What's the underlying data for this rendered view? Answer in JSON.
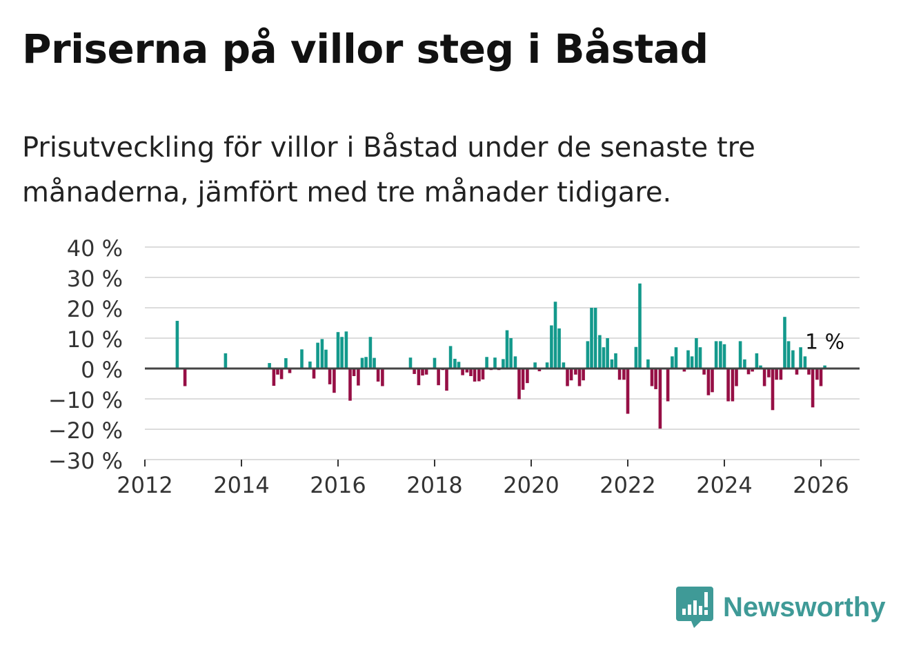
{
  "header": {
    "title": "Priserna på villor steg i Båstad",
    "subtitle": "Prisutveckling för villor i Båstad under de senaste tre månaderna, jämfört med tre månader tidigare."
  },
  "brand": {
    "name": "Newsworthy",
    "icon": "newsworthy-logo-icon"
  },
  "colors": {
    "positive": "#13998c",
    "negative": "#960f45",
    "grid": "#dcdcdc",
    "zero": "#444444"
  },
  "chart_data": {
    "type": "bar",
    "title": "Priserna på villor steg i Båstad",
    "xlabel": "",
    "ylabel": "",
    "xlim": [
      2012,
      2026.8
    ],
    "ylim": [
      -30,
      40
    ],
    "yticks": [
      -30,
      -20,
      -10,
      0,
      10,
      20,
      30,
      40
    ],
    "ytick_labels": [
      "−30 %",
      "−20 %",
      "−10 %",
      "0 %",
      "10 %",
      "20 %",
      "30 %",
      "40 %"
    ],
    "xticks": [
      2012,
      2014,
      2016,
      2018,
      2020,
      2022,
      2024,
      2026
    ],
    "xtick_labels": [
      "2012",
      "2014",
      "2016",
      "2018",
      "2020",
      "2022",
      "2024",
      "2026"
    ],
    "annotation": {
      "text": "1 %",
      "x": 2026.08,
      "y": 1
    },
    "points": [
      [
        2012.67,
        15.7
      ],
      [
        2012.83,
        -5.8
      ],
      [
        2013.67,
        5.0
      ],
      [
        2014.58,
        1.8
      ],
      [
        2014.67,
        -5.7
      ],
      [
        2014.75,
        -2.0
      ],
      [
        2014.83,
        -3.5
      ],
      [
        2014.92,
        3.4
      ],
      [
        2015.0,
        -1.5
      ],
      [
        2015.25,
        6.3
      ],
      [
        2015.42,
        2.3
      ],
      [
        2015.5,
        -3.3
      ],
      [
        2015.58,
        8.5
      ],
      [
        2015.67,
        9.7
      ],
      [
        2015.75,
        6.2
      ],
      [
        2015.83,
        -5.2
      ],
      [
        2015.92,
        -8.0
      ],
      [
        2016.0,
        12.0
      ],
      [
        2016.08,
        10.4
      ],
      [
        2016.17,
        12.2
      ],
      [
        2016.25,
        -10.6
      ],
      [
        2016.33,
        -2.5
      ],
      [
        2016.42,
        -5.6
      ],
      [
        2016.5,
        3.5
      ],
      [
        2016.58,
        3.8
      ],
      [
        2016.67,
        10.4
      ],
      [
        2016.75,
        3.5
      ],
      [
        2016.83,
        -4.3
      ],
      [
        2016.92,
        -5.8
      ],
      [
        2017.5,
        3.6
      ],
      [
        2017.58,
        -1.8
      ],
      [
        2017.67,
        -5.5
      ],
      [
        2017.75,
        -2.3
      ],
      [
        2017.83,
        -2.0
      ],
      [
        2018.0,
        3.5
      ],
      [
        2018.08,
        -5.5
      ],
      [
        2018.17,
        -0.5
      ],
      [
        2018.25,
        -7.3
      ],
      [
        2018.33,
        7.4
      ],
      [
        2018.42,
        3.2
      ],
      [
        2018.5,
        2.2
      ],
      [
        2018.58,
        -2.2
      ],
      [
        2018.67,
        -1.3
      ],
      [
        2018.75,
        -2.5
      ],
      [
        2018.83,
        -4.3
      ],
      [
        2018.92,
        -4.2
      ],
      [
        2019.0,
        -3.6
      ],
      [
        2019.08,
        3.8
      ],
      [
        2019.17,
        -0.5
      ],
      [
        2019.25,
        3.6
      ],
      [
        2019.33,
        -0.5
      ],
      [
        2019.42,
        3.1
      ],
      [
        2019.5,
        12.6
      ],
      [
        2019.58,
        10.0
      ],
      [
        2019.67,
        4.0
      ],
      [
        2019.75,
        -10.1
      ],
      [
        2019.83,
        -7.0
      ],
      [
        2019.92,
        -4.8
      ],
      [
        2020.08,
        2.0
      ],
      [
        2020.17,
        -0.9
      ],
      [
        2020.33,
        2.0
      ],
      [
        2020.42,
        14.2
      ],
      [
        2020.5,
        22.0
      ],
      [
        2020.58,
        13.2
      ],
      [
        2020.67,
        2.0
      ],
      [
        2020.75,
        -5.8
      ],
      [
        2020.83,
        -3.9
      ],
      [
        2020.92,
        -2.0
      ],
      [
        2021.0,
        -5.8
      ],
      [
        2021.08,
        -3.9
      ],
      [
        2021.17,
        9.0
      ],
      [
        2021.25,
        20.0
      ],
      [
        2021.33,
        20.0
      ],
      [
        2021.42,
        11.0
      ],
      [
        2021.5,
        7.0
      ],
      [
        2021.58,
        10.0
      ],
      [
        2021.67,
        3.0
      ],
      [
        2021.75,
        5.0
      ],
      [
        2021.83,
        -3.7
      ],
      [
        2021.92,
        -3.7
      ],
      [
        2022.0,
        -14.9
      ],
      [
        2022.17,
        7.1
      ],
      [
        2022.25,
        28.0
      ],
      [
        2022.42,
        3.0
      ],
      [
        2022.5,
        -5.8
      ],
      [
        2022.58,
        -6.8
      ],
      [
        2022.67,
        -19.8
      ],
      [
        2022.83,
        -10.8
      ],
      [
        2022.92,
        4.0
      ],
      [
        2023.0,
        7.0
      ],
      [
        2023.17,
        -1.0
      ],
      [
        2023.25,
        6.0
      ],
      [
        2023.33,
        4.0
      ],
      [
        2023.42,
        10.0
      ],
      [
        2023.5,
        7.0
      ],
      [
        2023.58,
        -2.0
      ],
      [
        2023.67,
        -8.8
      ],
      [
        2023.75,
        -7.8
      ],
      [
        2023.83,
        9.0
      ],
      [
        2023.92,
        9.0
      ],
      [
        2024.0,
        8.0
      ],
      [
        2024.08,
        -10.8
      ],
      [
        2024.17,
        -10.8
      ],
      [
        2024.25,
        -5.8
      ],
      [
        2024.33,
        9.0
      ],
      [
        2024.42,
        3.0
      ],
      [
        2024.5,
        -1.9
      ],
      [
        2024.58,
        -1.0
      ],
      [
        2024.67,
        5.0
      ],
      [
        2024.75,
        1.0
      ],
      [
        2024.83,
        -5.8
      ],
      [
        2024.92,
        -2.9
      ],
      [
        2025.0,
        -13.7
      ],
      [
        2025.08,
        -3.7
      ],
      [
        2025.17,
        -3.7
      ],
      [
        2025.25,
        17.0
      ],
      [
        2025.33,
        9.0
      ],
      [
        2025.42,
        6.0
      ],
      [
        2025.5,
        -2.0
      ],
      [
        2025.58,
        7.0
      ],
      [
        2025.67,
        4.0
      ],
      [
        2025.75,
        -2.0
      ],
      [
        2025.83,
        -12.8
      ],
      [
        2025.92,
        -3.7
      ],
      [
        2026.0,
        -5.8
      ],
      [
        2026.08,
        1.0
      ]
    ]
  }
}
